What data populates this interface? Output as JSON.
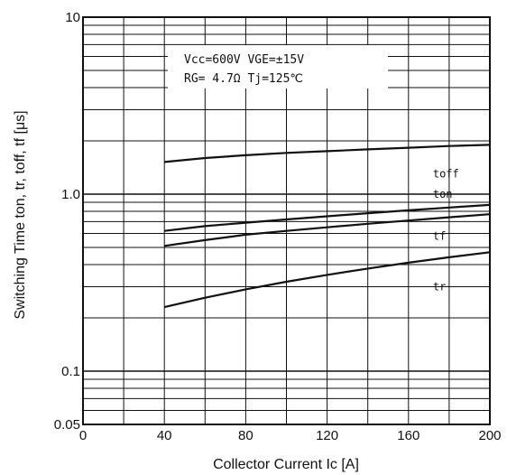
{
  "chart_data": {
    "type": "line",
    "xlabel": "Collector Current Ic [A]",
    "ylabel": "Switching Time ton, tr, toff, tf [μs]",
    "xscale": "linear",
    "yscale": "log",
    "xlim": [
      0,
      200
    ],
    "ylim": [
      0.05,
      10
    ],
    "x_ticks": [
      {
        "value": 0,
        "label": "0"
      },
      {
        "value": 40,
        "label": "40"
      },
      {
        "value": 80,
        "label": "80"
      },
      {
        "value": 120,
        "label": "120"
      },
      {
        "value": 160,
        "label": "160"
      },
      {
        "value": 200,
        "label": "200"
      }
    ],
    "y_ticks": [
      {
        "value": 0.05,
        "label": "0.05"
      },
      {
        "value": 0.1,
        "label": "0.1"
      },
      {
        "value": 1.0,
        "label": "1.0"
      },
      {
        "value": 10,
        "label": "10"
      }
    ],
    "grid": true,
    "conditions": [
      "Vcc=600V  VGE=±15V",
      "RG=  4.7Ω  Tj=125℃"
    ],
    "series": [
      {
        "name": "toff",
        "x": [
          40,
          60,
          80,
          100,
          120,
          140,
          160,
          180,
          200
        ],
        "y": [
          1.52,
          1.6,
          1.66,
          1.71,
          1.75,
          1.79,
          1.83,
          1.87,
          1.9
        ]
      },
      {
        "name": "ton",
        "x": [
          40,
          60,
          80,
          100,
          120,
          140,
          160,
          180,
          200
        ],
        "y": [
          0.62,
          0.66,
          0.69,
          0.72,
          0.75,
          0.78,
          0.81,
          0.84,
          0.87
        ]
      },
      {
        "name": "tf",
        "x": [
          40,
          60,
          80,
          100,
          120,
          140,
          160,
          180,
          200
        ],
        "y": [
          0.51,
          0.55,
          0.59,
          0.62,
          0.65,
          0.68,
          0.71,
          0.74,
          0.77
        ]
      },
      {
        "name": "tr",
        "x": [
          40,
          60,
          80,
          100,
          120,
          140,
          160,
          180,
          200
        ],
        "y": [
          0.23,
          0.26,
          0.29,
          0.32,
          0.35,
          0.38,
          0.41,
          0.44,
          0.47
        ]
      }
    ]
  }
}
